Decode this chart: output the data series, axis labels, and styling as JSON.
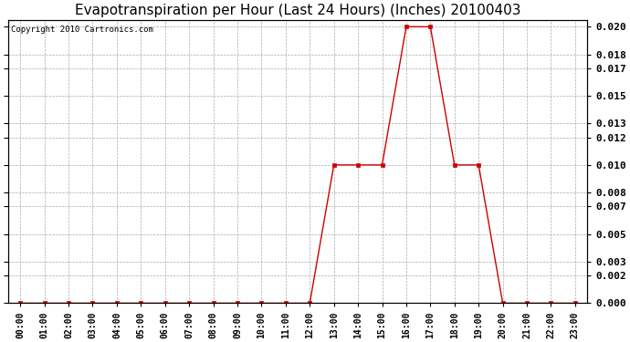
{
  "title": "Evapotranspiration per Hour (Last 24 Hours) (Inches) 20100403",
  "copyright_text": "Copyright 2010 Cartronics.com",
  "x_labels": [
    "00:00",
    "01:00",
    "02:00",
    "03:00",
    "04:00",
    "05:00",
    "06:00",
    "07:00",
    "08:00",
    "09:00",
    "10:00",
    "11:00",
    "12:00",
    "13:00",
    "14:00",
    "15:00",
    "16:00",
    "17:00",
    "18:00",
    "19:00",
    "20:00",
    "21:00",
    "22:00",
    "23:00"
  ],
  "y_values": [
    0.0,
    0.0,
    0.0,
    0.0,
    0.0,
    0.0,
    0.0,
    0.0,
    0.0,
    0.0,
    0.0,
    0.0,
    0.0,
    0.01,
    0.01,
    0.01,
    0.02,
    0.02,
    0.01,
    0.01,
    0.0,
    0.0,
    0.0,
    0.0
  ],
  "line_color": "#cc0000",
  "marker_color": "#cc0000",
  "background_color": "#ffffff",
  "plot_bg_color": "#ffffff",
  "grid_color": "#aaaaaa",
  "ylim": [
    0.0,
    0.0205
  ],
  "y_ticks": [
    0.0,
    0.002,
    0.003,
    0.005,
    0.007,
    0.008,
    0.01,
    0.012,
    0.013,
    0.015,
    0.017,
    0.018,
    0.02
  ],
  "title_fontsize": 11,
  "copyright_fontsize": 6.5,
  "tick_fontsize": 7,
  "ytick_fontsize": 8
}
